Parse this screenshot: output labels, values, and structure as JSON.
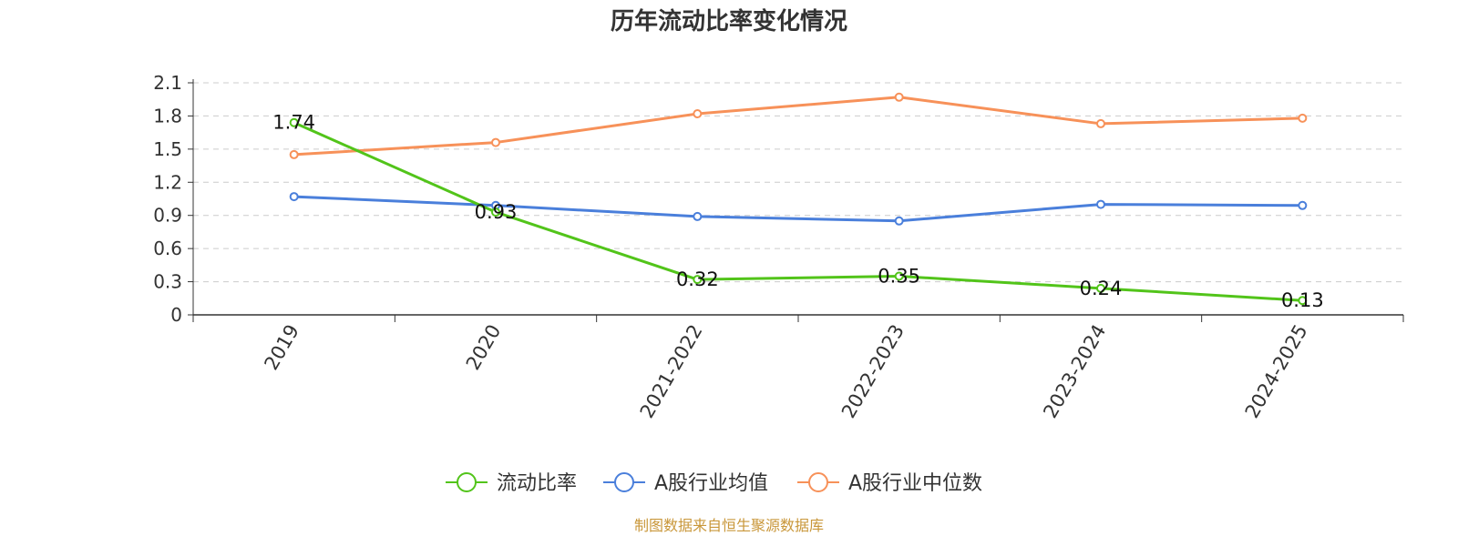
{
  "chart_data": {
    "type": "line",
    "title": "历年流动比率变化情况",
    "categories": [
      "2019",
      "2020",
      "2021-2022",
      "2022-2023",
      "2023-2024",
      "2024-2025"
    ],
    "ylim": [
      0,
      2.1
    ],
    "yticks": [
      0,
      0.3,
      0.6,
      0.9,
      1.2,
      1.5,
      1.8,
      2.1
    ],
    "ytick_labels": [
      "0",
      "0.3",
      "0.6",
      "0.9",
      "1.2",
      "1.5",
      "1.8",
      "2.1"
    ],
    "grid": true,
    "legend_position": "bottom-center",
    "series": [
      {
        "name": "流动比率",
        "color": "#52c41a",
        "values": [
          1.74,
          0.93,
          0.32,
          0.35,
          0.24,
          0.13
        ],
        "data_labels": [
          "1.74",
          "0.93",
          "0.32",
          "0.35",
          "0.24",
          "0.13"
        ]
      },
      {
        "name": "A股行业均值",
        "color": "#4a7fdb",
        "values": [
          1.07,
          0.99,
          0.89,
          0.85,
          1.0,
          0.99
        ]
      },
      {
        "name": "A股行业中位数",
        "color": "#f79159",
        "values": [
          1.45,
          1.56,
          1.82,
          1.97,
          1.73,
          1.78
        ]
      }
    ],
    "source": "制图数据来自恒生聚源数据库"
  }
}
